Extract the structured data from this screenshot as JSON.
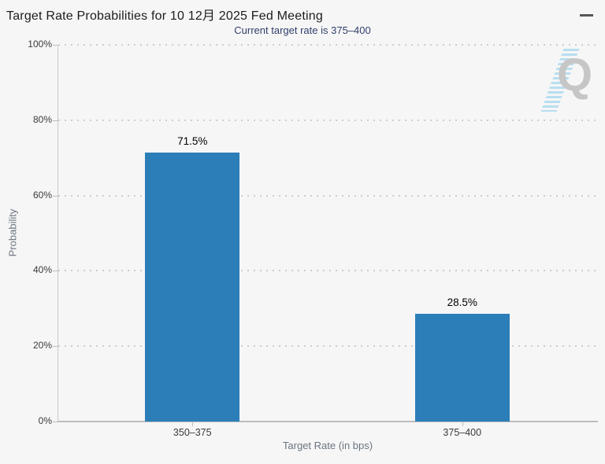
{
  "header": {
    "title": "Target Rate Probabilities for 10 12月 2025 Fed Meeting",
    "subtitle": "Current target rate is 375–400"
  },
  "watermark": {
    "letter": "Q"
  },
  "chart_data": {
    "type": "bar",
    "title": "Target Rate Probabilities for 10 12月 2025 Fed Meeting",
    "subtitle": "Current target rate is 375–400",
    "categories": [
      "350–375",
      "375–400"
    ],
    "values": [
      71.5,
      28.5
    ],
    "value_labels": [
      "71.5%",
      "28.5%"
    ],
    "xlabel": "Target Rate (in bps)",
    "ylabel": "Probability",
    "ylim": [
      0,
      100
    ],
    "ytick_labels": [
      "0%",
      "20%",
      "40%",
      "60%",
      "80%",
      "100%"
    ],
    "grid": "horizontal-dotted",
    "legend": "none",
    "bar_color": "#2c7eb8"
  },
  "colors": {
    "background": "#f6f6f6",
    "bar": "#2c7eb8",
    "subtitle": "#323f6b",
    "axis_titles": "#6b7480",
    "tick_labels": "#3a3a3a",
    "gridline": "#cdcdcd",
    "watermark_q": "#c6c6c6",
    "watermark_stripes": "#8ecdec",
    "menu_icon": "#57575a"
  }
}
